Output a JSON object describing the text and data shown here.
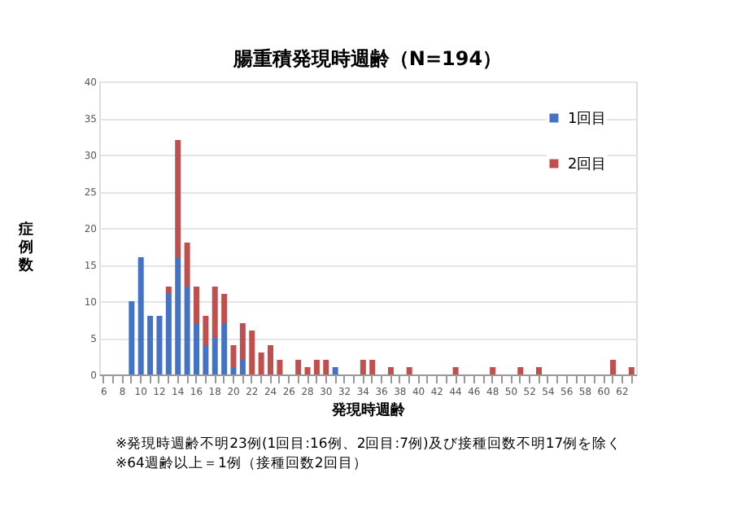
{
  "chart_data": {
    "type": "bar",
    "title": "腸重積発現時週齢（N=194）",
    "xlabel": "発現時週齢",
    "ylabel": "症例数",
    "categories": [
      "6",
      null,
      "8",
      null,
      "10",
      null,
      "12",
      null,
      "14",
      null,
      "16",
      null,
      "18",
      null,
      "20",
      null,
      "22",
      null,
      "24",
      null,
      "26",
      null,
      "28",
      null,
      "30",
      null,
      "32",
      null,
      "34",
      null,
      "36",
      null,
      "38",
      null,
      "40",
      null,
      "42",
      null,
      "44",
      null,
      "46",
      null,
      "48",
      null,
      "50",
      null,
      "52",
      null,
      "54",
      null,
      "56",
      null,
      "58",
      null,
      "60",
      null,
      "62",
      null
    ],
    "series": [
      {
        "name": "1回目",
        "color": "#4472c4",
        "values": [
          0,
          0,
          0,
          10,
          16,
          8,
          8,
          11,
          16,
          12,
          7,
          4,
          5,
          7,
          1,
          2,
          0,
          0,
          0,
          0,
          0,
          0,
          0,
          0,
          0,
          1,
          0,
          0,
          0,
          0,
          0,
          0,
          0,
          0,
          0,
          0,
          0,
          0,
          0,
          0,
          0,
          0,
          0,
          0,
          0,
          0,
          0,
          0,
          0,
          0,
          0,
          0,
          0,
          0,
          0,
          0,
          0,
          0
        ]
      },
      {
        "name": "2回目",
        "color": "#c0504d",
        "values": [
          0,
          0,
          0,
          0,
          0,
          0,
          0,
          1,
          16,
          6,
          5,
          4,
          7,
          4,
          3,
          5,
          6,
          3,
          4,
          2,
          0,
          2,
          1,
          2,
          2,
          0,
          0,
          0,
          2,
          2,
          0,
          1,
          0,
          1,
          0,
          0,
          0,
          0,
          1,
          0,
          0,
          0,
          1,
          0,
          0,
          1,
          0,
          1,
          0,
          0,
          0,
          0,
          0,
          0,
          0,
          2,
          0,
          1
        ]
      }
    ],
    "stacked": true,
    "ylim": [
      0,
      40
    ],
    "yticks": [
      0,
      5,
      10,
      15,
      20,
      25,
      30,
      35,
      40
    ],
    "grid": "y",
    "legend": "top right",
    "annotations": [
      "※発現時週齢不明23例(1回目:16例、2回目:7例)及び接種回数不明17例を除く",
      "※64週齢以上＝1例（接種回数2回目）"
    ]
  }
}
